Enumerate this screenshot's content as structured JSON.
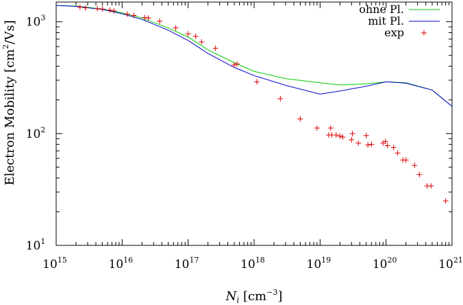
{
  "chart_data": {
    "type": "scatter",
    "title": "",
    "xlabel": {
      "base": "N",
      "sub": "i",
      "unit_open": " [cm",
      "unit_sup": "−3",
      "unit_close": "]"
    },
    "ylabel": {
      "text": "Electron Mobility [cm",
      "sup": "2",
      "tail": "/Vs]"
    },
    "x_scale": "log",
    "y_scale": "log",
    "xlim": [
      1000000000000000.0,
      1e+21
    ],
    "ylim": [
      10,
      1500
    ],
    "grid": false,
    "legend_position": "top-right",
    "x_ticks": [
      {
        "value": 1000000000000000.0,
        "base": "10",
        "exp": "15"
      },
      {
        "value": 1e+16,
        "base": "10",
        "exp": "16"
      },
      {
        "value": 1e+17,
        "base": "10",
        "exp": "17"
      },
      {
        "value": 1e+18,
        "base": "10",
        "exp": "18"
      },
      {
        "value": 1e+19,
        "base": "10",
        "exp": "19"
      },
      {
        "value": 1e+20,
        "base": "10",
        "exp": "20"
      },
      {
        "value": 1e+21,
        "base": "10",
        "exp": "21"
      }
    ],
    "y_ticks": [
      {
        "value": 10,
        "base": "10",
        "exp": "1"
      },
      {
        "value": 100,
        "base": "10",
        "exp": "2"
      },
      {
        "value": 1000,
        "base": "10",
        "exp": "3"
      }
    ],
    "series": [
      {
        "name": "ohne Pl.",
        "kind": "line",
        "color": "#00cc00",
        "points": [
          [
            1000000000000000.0,
            1400
          ],
          [
            2000000000000000.0,
            1380
          ],
          [
            5000000000000000.0,
            1300
          ],
          [
            1e+16,
            1200
          ],
          [
            2e+16,
            1080
          ],
          [
            5e+16,
            880
          ],
          [
            1e+17,
            730
          ],
          [
            2e+17,
            560
          ],
          [
            5e+17,
            430
          ],
          [
            1e+18,
            360
          ],
          [
            3e+18,
            310
          ],
          [
            1e+19,
            285
          ],
          [
            2e+19,
            272
          ],
          [
            5e+19,
            278
          ],
          [
            1e+20,
            290
          ],
          [
            2e+20,
            285
          ],
          [
            5e+20,
            245
          ],
          [
            1e+21,
            175
          ]
        ]
      },
      {
        "name": "mit Pl.",
        "kind": "line",
        "color": "#0000cc",
        "points": [
          [
            1000000000000000.0,
            1400
          ],
          [
            2000000000000000.0,
            1370
          ],
          [
            5000000000000000.0,
            1290
          ],
          [
            1e+16,
            1180
          ],
          [
            2e+16,
            1050
          ],
          [
            5e+16,
            840
          ],
          [
            1e+17,
            680
          ],
          [
            2e+17,
            520
          ],
          [
            5e+17,
            390
          ],
          [
            1e+18,
            330
          ],
          [
            3e+18,
            270
          ],
          [
            1e+19,
            225
          ],
          [
            2e+19,
            240
          ],
          [
            5e+19,
            265
          ],
          [
            1e+20,
            290
          ],
          [
            2e+20,
            282
          ],
          [
            5e+20,
            245
          ],
          [
            1e+21,
            175
          ]
        ]
      },
      {
        "name": "exp",
        "kind": "points",
        "color": "#dd0000",
        "points": [
          [
            2300000000000000.0,
            1350
          ],
          [
            2800000000000000.0,
            1330
          ],
          [
            4200000000000000.0,
            1310
          ],
          [
            5000000000000000.0,
            1300
          ],
          [
            6500000000000000.0,
            1270
          ],
          [
            7500000000000000.0,
            1250
          ],
          [
            1.2e+16,
            1170
          ],
          [
            1.5e+16,
            1140
          ],
          [
            2.2e+16,
            1090
          ],
          [
            2.5e+16,
            1080
          ],
          [
            3.7e+16,
            1010
          ],
          [
            6.5e+16,
            880
          ],
          [
            1e+17,
            780
          ],
          [
            1.3e+17,
            740
          ],
          [
            1.6e+17,
            660
          ],
          [
            2.6e+17,
            580
          ],
          [
            5e+17,
            410
          ],
          [
            5.5e+17,
            420
          ],
          [
            1.1e+18,
            290
          ],
          [
            2.5e+18,
            205
          ],
          [
            5e+18,
            135
          ],
          [
            9e+18,
            112
          ],
          [
            1.35e+19,
            97
          ],
          [
            1.45e+19,
            112
          ],
          [
            1.5e+19,
            97
          ],
          [
            1.75e+19,
            97
          ],
          [
            2e+19,
            95
          ],
          [
            2.2e+19,
            93
          ],
          [
            3e+19,
            88
          ],
          [
            3.1e+19,
            100
          ],
          [
            3.8e+19,
            82
          ],
          [
            5e+19,
            96
          ],
          [
            5.3e+19,
            79
          ],
          [
            6e+19,
            80
          ],
          [
            9e+19,
            82
          ],
          [
            9.8e+19,
            85
          ],
          [
            1.05e+20,
            78
          ],
          [
            1.3e+20,
            75
          ],
          [
            1.5e+20,
            67
          ],
          [
            1.8e+20,
            58
          ],
          [
            2e+20,
            58
          ],
          [
            2.7e+20,
            52
          ],
          [
            3.2e+20,
            43
          ],
          [
            4.2e+20,
            34
          ],
          [
            4.8e+20,
            34
          ],
          [
            8e+20,
            25
          ]
        ]
      }
    ]
  }
}
